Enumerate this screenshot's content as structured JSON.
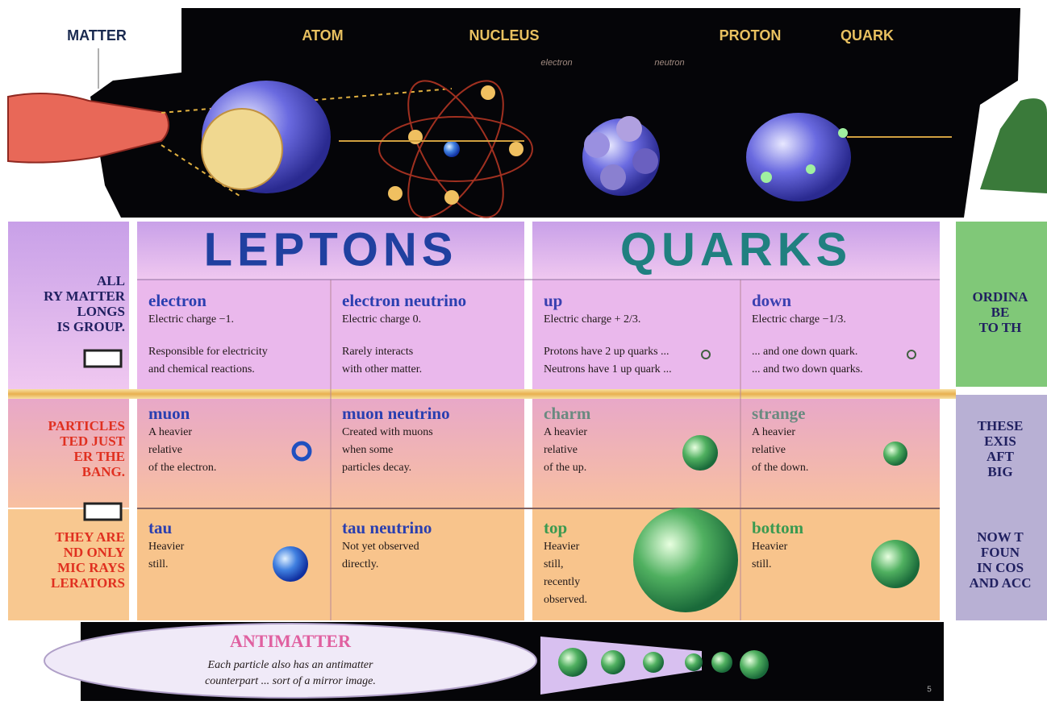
{
  "header": {
    "matter": "MATTER",
    "atom": "ATOM",
    "nucleus": "NUCLEUS",
    "proton": "PROTON",
    "quark": "QUARK",
    "electron_label": "electron",
    "neutron_label": "neutron"
  },
  "left_notes": [
    [
      "ALL",
      "RY MATTER",
      "LONGS",
      "IS GROUP."
    ],
    [
      "PARTICLES",
      "TED JUST",
      "ER THE",
      "BANG."
    ],
    [
      "THEY ARE",
      "ND ONLY",
      "MIC RAYS",
      "LERATORS"
    ]
  ],
  "right_notes": [
    [
      "ORDINA",
      "BE",
      "TO TH"
    ],
    [
      "THESE",
      "EXIS",
      "AFT",
      "BIG"
    ],
    [
      "NOW T",
      "FOUN",
      "IN COS",
      "AND ACC"
    ]
  ],
  "groups": [
    {
      "title": "LEPTONS",
      "rows": [
        [
          {
            "name": "electron",
            "lines": [
              "Electric charge −1.",
              "Responsible for electricity",
              "and chemical reactions."
            ]
          },
          {
            "name": "electron neutrino",
            "lines": [
              "Electric charge 0.",
              "Rarely interacts",
              "with other matter."
            ]
          }
        ],
        [
          {
            "name": "muon",
            "lines": [
              "A heavier",
              "relative",
              "of the electron."
            ]
          },
          {
            "name": "muon neutrino",
            "lines": [
              "Created with muons",
              "when some",
              "particles decay."
            ]
          }
        ],
        [
          {
            "name": "tau",
            "lines": [
              "Heavier",
              "still."
            ]
          },
          {
            "name": "tau neutrino",
            "lines": [
              "Not yet observed",
              "directly."
            ]
          }
        ]
      ]
    },
    {
      "title": "QUARKS",
      "rows": [
        [
          {
            "name": "up",
            "lines": [
              "Electric charge + 2/3.",
              "Protons have 2 up quarks ...",
              "Neutrons have 1 up quark ..."
            ]
          },
          {
            "name": "down",
            "lines": [
              "Electric charge −1/3.",
              "... and one down quark.",
              "... and two down quarks."
            ]
          }
        ],
        [
          {
            "name": "charm",
            "lines": [
              "A heavier",
              "relative",
              "of the up."
            ]
          },
          {
            "name": "strange",
            "lines": [
              "A heavier",
              "relative",
              "of the down."
            ]
          }
        ],
        [
          {
            "name": "top",
            "lines": [
              "Heavier",
              "still,",
              "recently",
              "observed."
            ]
          },
          {
            "name": "bottom",
            "lines": [
              "Heavier",
              "still."
            ]
          }
        ]
      ]
    }
  ],
  "antimatter": {
    "title": "ANTIMATTER",
    "lines": [
      "Each particle also has an antimatter",
      "counterpart ... sort of a mirror image."
    ]
  },
  "page_number": "5"
}
